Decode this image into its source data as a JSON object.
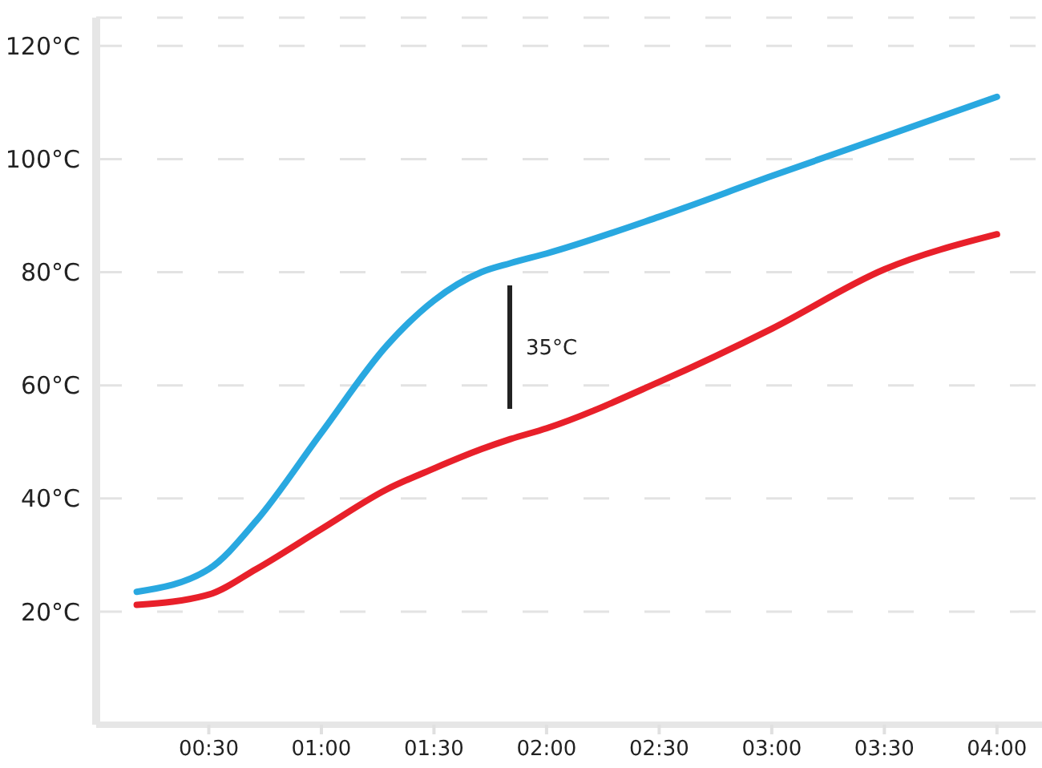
{
  "chart_data": {
    "type": "line",
    "x": [
      0.18,
      0.5,
      0.71,
      1.0,
      1.29,
      1.5,
      1.71,
      1.84,
      2.0,
      2.5,
      3.0,
      3.5,
      4.0
    ],
    "series": [
      {
        "color": "#29a8e0",
        "values": [
          23.5,
          27.5,
          36,
          51.6,
          67,
          75,
          80,
          81.6,
          83.3,
          89.8,
          97,
          104,
          111
        ]
      },
      {
        "color": "#e8202a",
        "values": [
          21.2,
          23,
          27.5,
          34.6,
          41.6,
          45.3,
          48.7,
          50.5,
          52.4,
          60.6,
          70,
          80.5,
          86.7
        ]
      }
    ],
    "xlim": [
      0,
      4.2
    ],
    "xticks": [
      {
        "value": 0.5,
        "label": "00:30"
      },
      {
        "value": 1,
        "label": "01:00"
      },
      {
        "value": 1.5,
        "label": "01:30"
      },
      {
        "value": 2,
        "label": "02:00"
      },
      {
        "value": 2.5,
        "label": "02:30"
      },
      {
        "value": 3,
        "label": "03:00"
      },
      {
        "value": 3.5,
        "label": "03:30"
      },
      {
        "value": 4,
        "label": "04:00"
      }
    ],
    "ylim": [
      0,
      125
    ],
    "yticks": [
      {
        "value": 20,
        "label": "20°C"
      },
      {
        "value": 40,
        "label": "40°C"
      },
      {
        "value": 60,
        "label": "60°C"
      },
      {
        "value": 80,
        "label": "80°C"
      },
      {
        "value": 100,
        "label": "100°C"
      },
      {
        "value": 120,
        "label": "120°C"
      }
    ],
    "annotations": [
      "35°C"
    ],
    "grid": "y",
    "marker": "none",
    "line_style": "solid"
  }
}
